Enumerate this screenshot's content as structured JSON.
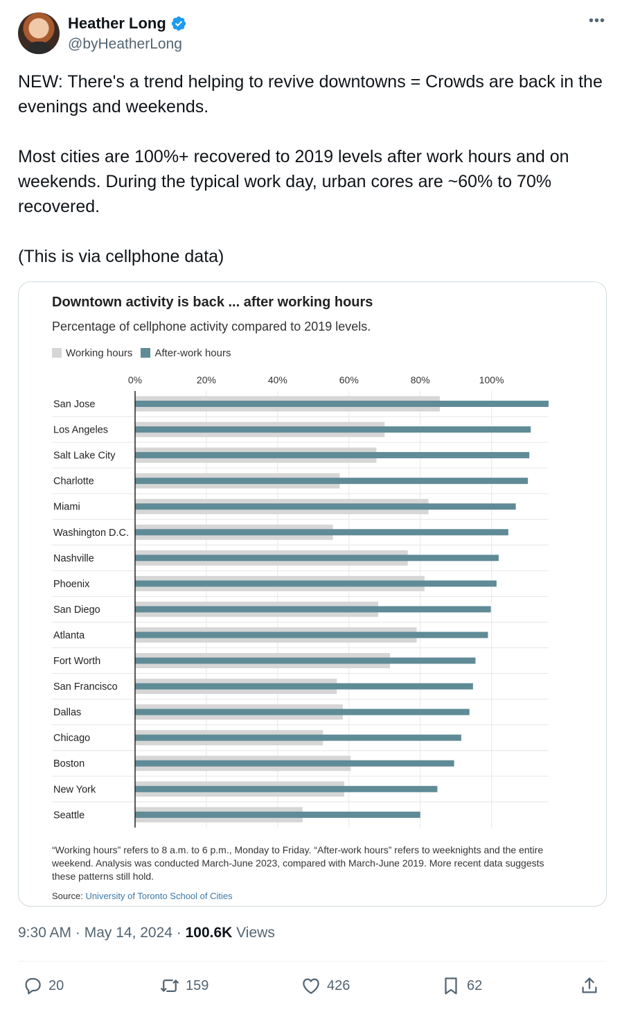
{
  "author": {
    "name": "Heather Long",
    "handle": "@byHeatherLong"
  },
  "tweet": {
    "paragraph1": "NEW: There's a trend helping to revive downtowns = Crowds are back in the evenings and weekends.",
    "paragraph2": "Most cities are 100%+ recovered to 2019 levels after work hours and on weekends. During the typical work day, urban cores are ~60% to 70% recovered.",
    "paragraph3": "(This is via cellphone data)"
  },
  "chart_data": {
    "type": "bar",
    "title": "Downtown activity is back ... after working hours",
    "subtitle": "Percentage of cellphone activity compared to 2019 levels.",
    "xlim": [
      0,
      116
    ],
    "x_ticks": [
      "0%",
      "20%",
      "40%",
      "60%",
      "80%",
      "100%"
    ],
    "x_tick_values": [
      0,
      20,
      40,
      60,
      80,
      100
    ],
    "legend_position": "top-left",
    "grid": true,
    "categories": [
      "San Jose",
      "Los Angeles",
      "Salt Lake City",
      "Charlotte",
      "Miami",
      "Washington D.C.",
      "Nashville",
      "Phoenix",
      "San Diego",
      "Atlanta",
      "Fort Worth",
      "San Francisco",
      "Dallas",
      "Chicago",
      "Boston",
      "New York",
      "Seattle"
    ],
    "series": [
      {
        "name": "Working hours",
        "color": "#d6d6d6",
        "values": [
          85.5,
          70,
          67.7,
          57.4,
          82.3,
          55.5,
          76.5,
          81.2,
          68.2,
          79,
          71.5,
          56.6,
          58.3,
          52.7,
          60.5,
          58.7,
          47
        ]
      },
      {
        "name": "After-work hours",
        "color": "#5f8b96",
        "values": [
          116,
          111,
          110.6,
          110.2,
          106.8,
          104.7,
          102,
          101.4,
          99.8,
          99,
          95.5,
          94.8,
          93.8,
          91.5,
          89.5,
          84.8,
          80
        ]
      }
    ],
    "footnote": "“Working hours” refers to 8 a.m. to 6 p.m., Monday to Friday. “After-work hours” refers to weeknights and the entire weekend. Analysis was conducted March-June 2023, compared with March-June 2019. More recent data suggests these patterns still hold.",
    "source_label": "Source:",
    "source_text": "University of Toronto School of Cities"
  },
  "meta": {
    "time_date": "9:30 AM · May 14, 2024 · ",
    "views_count": "100.6K",
    "views_label": " Views"
  },
  "actions": {
    "replies": "20",
    "reposts": "159",
    "likes": "426",
    "bookmarks": "62"
  },
  "icons": {
    "verified": "verified-badge-icon",
    "more": "more-horizontal-icon",
    "reply": "reply-icon",
    "repost": "repost-icon",
    "like": "heart-icon",
    "bookmark": "bookmark-icon",
    "share": "share-icon"
  },
  "colors": {
    "verified": "#1d9bf0",
    "muted": "#536471"
  }
}
